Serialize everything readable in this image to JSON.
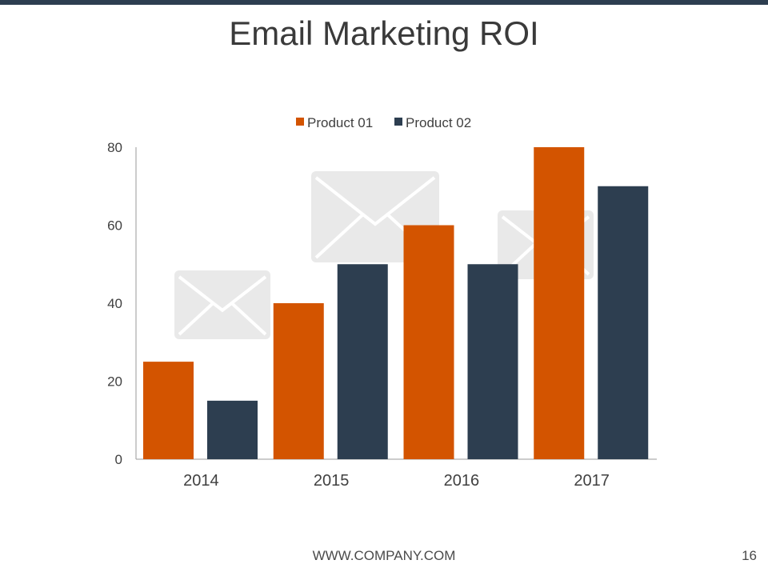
{
  "slide": {
    "title": "Email Marketing ROI",
    "footer_url": "WWW.COMPANY.COM",
    "page_number": "16",
    "accent_color": "#2d3e50"
  },
  "chart_data": {
    "type": "bar",
    "categories": [
      "2014",
      "2015",
      "2016",
      "2017"
    ],
    "series": [
      {
        "name": "Product 01",
        "values": [
          25,
          40,
          60,
          80
        ],
        "color": "#d35400"
      },
      {
        "name": "Product 02",
        "values": [
          15,
          50,
          50,
          70
        ],
        "color": "#2d3e50"
      }
    ],
    "title": "",
    "xlabel": "",
    "ylabel": "",
    "ylim": [
      0,
      80
    ],
    "yticks": [
      0,
      20,
      40,
      60,
      80
    ],
    "grid": false,
    "legend_position": "top-center",
    "decorations": [
      "envelope-icon",
      "envelope-icon",
      "envelope-icon"
    ]
  }
}
